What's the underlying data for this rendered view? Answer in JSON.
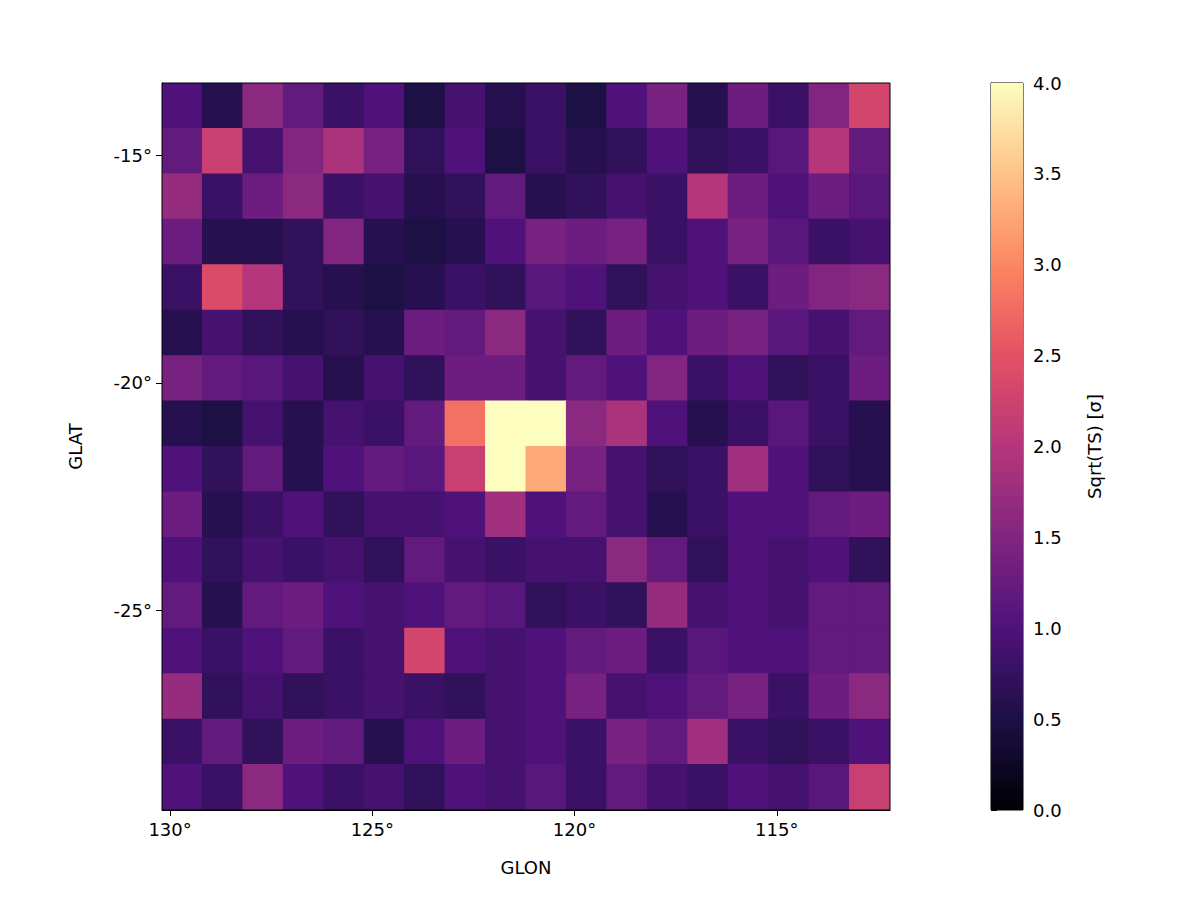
{
  "chart_data": {
    "type": "heatmap",
    "x_label": "GLON",
    "y_label": "GLAT",
    "colorbar_label": "Sqrt(TS) [σ]",
    "xlim": [
      130.2,
      112.2
    ],
    "ylim": [
      -29.4,
      -13.4
    ],
    "xticks": [
      {
        "value": 130,
        "label": "130°"
      },
      {
        "value": 125,
        "label": "125°"
      },
      {
        "value": 120,
        "label": "120°"
      },
      {
        "value": 115,
        "label": "115°"
      }
    ],
    "yticks": [
      {
        "value": -25,
        "label": "-25°"
      },
      {
        "value": -20,
        "label": "-20°"
      },
      {
        "value": -15,
        "label": "-15°"
      }
    ],
    "grid": true,
    "x": [
      129.7,
      128.7,
      127.7,
      126.7,
      125.7,
      124.7,
      123.7,
      122.7,
      121.7,
      120.7,
      119.7,
      118.7,
      117.7,
      116.7,
      115.7,
      114.7,
      113.7,
      112.7
    ],
    "y": [
      -13.9,
      -14.9,
      -15.9,
      -16.9,
      -17.9,
      -18.9,
      -19.9,
      -20.9,
      -21.9,
      -22.9,
      -23.9,
      -24.9,
      -25.9,
      -26.9,
      -27.9,
      -28.9
    ],
    "values": [
      [
        1.0,
        0.6,
        1.6,
        1.2,
        0.8,
        1.0,
        0.5,
        0.9,
        0.6,
        0.8,
        0.5,
        1.0,
        1.4,
        0.6,
        1.3,
        0.8,
        1.5,
        2.3
      ],
      [
        1.2,
        2.2,
        0.9,
        1.5,
        1.9,
        1.4,
        0.7,
        1.0,
        0.5,
        0.8,
        0.6,
        0.7,
        1.0,
        0.7,
        0.8,
        1.1,
        2.0,
        1.2
      ],
      [
        1.7,
        0.8,
        1.3,
        1.6,
        0.8,
        0.9,
        0.6,
        0.7,
        1.2,
        0.6,
        0.7,
        0.9,
        0.8,
        2.0,
        1.3,
        1.0,
        1.3,
        1.1
      ],
      [
        1.3,
        0.6,
        0.6,
        0.7,
        1.5,
        0.6,
        0.5,
        0.6,
        1.0,
        1.4,
        1.3,
        1.4,
        0.8,
        1.0,
        1.4,
        1.1,
        0.8,
        0.9
      ],
      [
        0.8,
        2.4,
        2.0,
        0.7,
        0.6,
        0.5,
        0.6,
        0.8,
        0.7,
        1.1,
        1.0,
        0.7,
        0.9,
        1.0,
        0.8,
        1.3,
        1.5,
        1.6
      ],
      [
        0.6,
        0.9,
        0.7,
        0.6,
        0.7,
        0.6,
        1.3,
        1.2,
        1.6,
        0.9,
        0.7,
        1.3,
        1.0,
        1.3,
        1.4,
        1.1,
        0.9,
        1.2
      ],
      [
        1.4,
        1.2,
        1.1,
        0.9,
        0.6,
        0.9,
        0.7,
        1.3,
        1.3,
        0.9,
        1.2,
        1.0,
        1.5,
        0.8,
        1.0,
        0.7,
        0.8,
        1.3
      ],
      [
        0.6,
        0.5,
        0.9,
        0.6,
        0.9,
        0.8,
        1.2,
        2.8,
        4.0,
        4.0,
        1.6,
        1.9,
        1.0,
        0.6,
        0.8,
        1.1,
        0.8,
        0.6
      ],
      [
        1.0,
        0.7,
        1.2,
        0.6,
        1.0,
        1.2,
        1.1,
        2.2,
        4.0,
        3.3,
        1.4,
        0.9,
        0.7,
        0.8,
        1.8,
        1.0,
        0.7,
        0.6
      ],
      [
        1.3,
        0.6,
        0.8,
        1.0,
        0.7,
        0.9,
        0.9,
        1.0,
        1.8,
        1.0,
        1.2,
        0.9,
        0.6,
        0.8,
        1.0,
        1.0,
        1.2,
        1.3
      ],
      [
        1.0,
        0.7,
        0.9,
        0.8,
        0.9,
        0.7,
        1.2,
        0.9,
        0.8,
        0.9,
        0.9,
        1.6,
        1.2,
        0.7,
        1.0,
        0.9,
        1.0,
        0.7
      ],
      [
        1.2,
        0.6,
        1.2,
        1.3,
        1.0,
        0.9,
        1.0,
        1.2,
        1.1,
        0.7,
        0.8,
        0.7,
        1.7,
        0.9,
        1.0,
        0.9,
        1.2,
        1.2
      ],
      [
        1.0,
        0.8,
        1.0,
        1.2,
        0.8,
        0.9,
        2.3,
        1.0,
        0.9,
        1.0,
        1.2,
        1.3,
        0.8,
        1.1,
        1.0,
        1.0,
        1.2,
        1.2
      ],
      [
        1.7,
        0.7,
        0.9,
        0.7,
        0.8,
        0.9,
        0.8,
        0.7,
        0.9,
        1.0,
        1.4,
        0.9,
        1.0,
        1.2,
        1.4,
        0.8,
        1.3,
        1.6
      ],
      [
        0.8,
        1.2,
        0.7,
        1.3,
        1.2,
        0.6,
        1.0,
        1.3,
        0.9,
        1.0,
        0.8,
        1.4,
        1.2,
        1.8,
        0.8,
        0.7,
        0.8,
        1.0
      ],
      [
        1.0,
        0.8,
        1.6,
        1.0,
        0.8,
        0.9,
        0.7,
        1.0,
        0.9,
        1.1,
        0.8,
        1.2,
        0.9,
        0.8,
        1.0,
        0.9,
        1.1,
        2.2
      ]
    ],
    "colorbar_lim": [
      0,
      4
    ],
    "colorbar_ticks": [
      {
        "value": 0,
        "label": "0.0"
      },
      {
        "value": 0.5,
        "label": "0.5"
      },
      {
        "value": 1,
        "label": "1.0"
      },
      {
        "value": 1.5,
        "label": "1.5"
      },
      {
        "value": 2,
        "label": "2.0"
      },
      {
        "value": 2.5,
        "label": "2.5"
      },
      {
        "value": 3,
        "label": "3.0"
      },
      {
        "value": 3.5,
        "label": "3.5"
      },
      {
        "value": 4,
        "label": "4.0"
      }
    ]
  }
}
